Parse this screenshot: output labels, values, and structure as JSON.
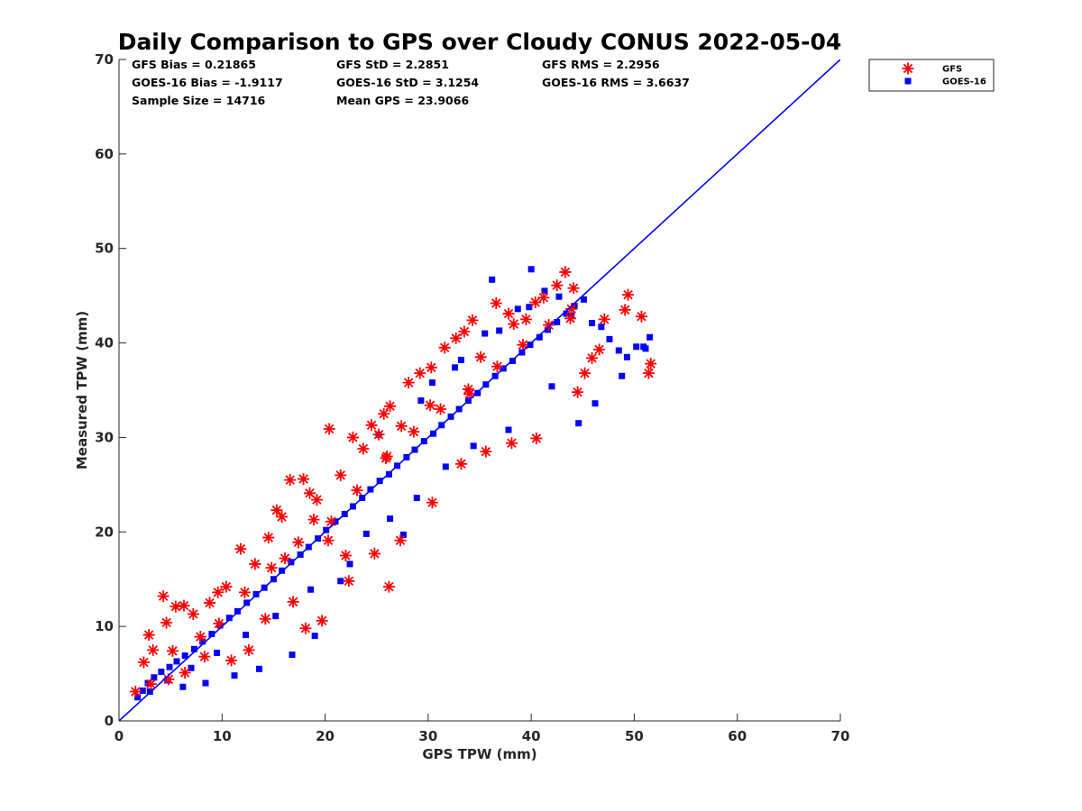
{
  "chart_data": {
    "type": "scatter",
    "title": "Daily Comparison to GPS over Cloudy CONUS 2022-05-04",
    "xlabel": "GPS TPW (mm)",
    "ylabel": "Measured TPW (mm)",
    "xlim": [
      0,
      70
    ],
    "ylim": [
      0,
      70
    ],
    "xticks": [
      0,
      10,
      20,
      30,
      40,
      50,
      60,
      70
    ],
    "yticks": [
      0,
      10,
      20,
      30,
      40,
      50,
      60,
      70
    ],
    "grid": false,
    "legend_position": "outside-top-right",
    "stats": [
      [
        "GFS Bias = 0.21865",
        "GFS StD = 2.2851",
        "GFS RMS = 2.2956"
      ],
      [
        "GOES-16 Bias = -1.9117",
        "GOES-16 StD = 3.1254",
        "GOES-16 RMS = 3.6637"
      ],
      [
        "Sample Size = 14716",
        "Mean GPS = 23.9066",
        ""
      ]
    ],
    "reference_line": {
      "x": [
        0,
        70
      ],
      "y": [
        0,
        70
      ],
      "color": "#0000ff"
    },
    "series": [
      {
        "name": "GFS",
        "marker": "asterisk",
        "color": "#ff0000",
        "x": [
          1.6,
          2.4,
          2.9,
          3.3,
          4.3,
          4.6,
          5.5,
          6.3,
          7.2,
          8.8,
          9.6,
          10.4,
          11.8,
          13.2,
          14.5,
          15.3,
          15.8,
          16.6,
          17.9,
          18.5,
          19.2,
          20.4,
          21.5,
          22.7,
          23.7,
          24.5,
          25.2,
          25.7,
          26.3,
          27.4,
          28.1,
          29.2,
          30.3,
          31.6,
          32.7,
          33.5,
          34.3,
          35.1,
          36.6,
          37.8,
          38.3,
          39.5,
          40.4,
          41.2,
          42.5,
          43.3,
          44.1,
          44.5,
          45.2,
          45.9,
          46.6,
          47.1,
          49.1,
          49.4,
          50.7,
          51.6,
          51.4,
          43.9,
          40.5,
          38.1,
          35.6,
          33.2,
          30.4,
          27.3,
          24.8,
          22.3,
          19.7,
          18.1,
          16.9,
          14.2,
          12.6,
          10.9,
          8.3,
          6.4,
          4.8,
          3.1,
          5.2,
          7.9,
          9.7,
          12.2,
          14.8,
          17.4,
          20.6,
          23.1,
          25.9,
          28.6,
          31.2,
          34.0,
          36.7,
          39.2,
          41.7,
          43.8,
          26.2,
          22.0,
          18.9,
          26.0,
          20.3,
          16.1,
          30.2,
          33.9
        ],
        "y": [
          3.1,
          6.2,
          9.1,
          7.5,
          13.2,
          10.4,
          12.1,
          12.2,
          11.3,
          12.5,
          13.6,
          14.2,
          18.2,
          16.6,
          19.4,
          22.3,
          21.6,
          25.5,
          25.6,
          24.1,
          23.4,
          30.9,
          26.0,
          30.0,
          28.8,
          31.3,
          30.3,
          32.5,
          33.3,
          31.2,
          35.8,
          36.8,
          37.4,
          39.5,
          40.5,
          41.2,
          42.4,
          38.5,
          44.2,
          43.1,
          42.0,
          42.5,
          44.3,
          44.8,
          46.1,
          47.5,
          45.8,
          34.8,
          36.8,
          38.4,
          39.3,
          42.5,
          43.5,
          45.1,
          42.8,
          37.8,
          36.8,
          43.6,
          29.9,
          29.4,
          28.5,
          27.2,
          23.1,
          19.1,
          17.7,
          14.8,
          10.6,
          9.8,
          12.6,
          10.8,
          7.5,
          6.4,
          6.8,
          5.1,
          4.4,
          3.9,
          7.4,
          8.9,
          10.3,
          13.6,
          16.2,
          18.9,
          21.1,
          24.4,
          27.8,
          30.6,
          33.0,
          34.6,
          37.5,
          39.8,
          41.9,
          42.6,
          14.2,
          17.5,
          21.3,
          28.0,
          19.1,
          17.2,
          33.4,
          35.1
        ]
      },
      {
        "name": "GOES-16",
        "marker": "square",
        "color": "#0000ff",
        "x": [
          1.8,
          2.3,
          2.8,
          3.4,
          4.1,
          4.9,
          5.6,
          6.4,
          7.3,
          8.1,
          9.0,
          9.8,
          10.7,
          11.5,
          12.4,
          13.3,
          14.1,
          15.0,
          15.8,
          16.7,
          17.6,
          18.4,
          19.3,
          20.1,
          21.0,
          21.9,
          22.7,
          23.6,
          24.4,
          25.3,
          26.2,
          27.0,
          27.9,
          28.7,
          29.6,
          30.5,
          31.3,
          32.2,
          33.0,
          33.9,
          34.8,
          35.6,
          36.5,
          37.3,
          38.2,
          39.1,
          39.9,
          40.8,
          41.6,
          42.5,
          43.4,
          44.2,
          45.1,
          45.9,
          46.8,
          47.6,
          48.5,
          49.3,
          50.2,
          51.1,
          51.5,
          36.2,
          40.0,
          44.6,
          26.3,
          24.0,
          21.5,
          28.9,
          31.7,
          34.4,
          37.8,
          42.0,
          16.8,
          19.0,
          13.6,
          11.2,
          8.4,
          6.2,
          30.4,
          33.2,
          35.5,
          38.7,
          41.3,
          43.9,
          46.2,
          48.8,
          50.9,
          27.6,
          22.4,
          18.6,
          15.2,
          12.3,
          9.5,
          7.0,
          4.7,
          3.0,
          25.2,
          29.3,
          32.6,
          36.9,
          39.8,
          42.7
        ],
        "y": [
          2.5,
          3.2,
          4.0,
          4.6,
          5.2,
          5.7,
          6.3,
          6.9,
          7.6,
          8.4,
          9.2,
          10.1,
          10.9,
          11.6,
          12.5,
          13.4,
          14.1,
          15.0,
          15.9,
          16.8,
          17.6,
          18.4,
          19.3,
          20.2,
          21.1,
          21.9,
          22.7,
          23.6,
          24.5,
          25.4,
          26.1,
          27.0,
          27.9,
          28.7,
          29.6,
          30.4,
          31.3,
          32.2,
          33.0,
          33.9,
          34.7,
          35.6,
          36.5,
          37.3,
          38.1,
          39.0,
          39.8,
          40.6,
          41.4,
          42.2,
          43.1,
          43.9,
          44.6,
          42.1,
          41.7,
          40.4,
          39.2,
          38.5,
          39.6,
          39.4,
          40.6,
          46.7,
          47.8,
          31.5,
          21.4,
          19.8,
          14.8,
          23.6,
          26.9,
          29.1,
          30.8,
          35.4,
          7.0,
          9.0,
          5.5,
          4.8,
          4.0,
          3.6,
          35.8,
          38.2,
          41.0,
          43.6,
          45.5,
          42.9,
          33.6,
          36.5,
          39.6,
          19.7,
          16.6,
          13.9,
          11.1,
          9.1,
          7.2,
          5.6,
          4.3,
          3.1,
          30.3,
          33.9,
          37.4,
          41.3,
          43.8,
          44.9
        ]
      }
    ]
  }
}
